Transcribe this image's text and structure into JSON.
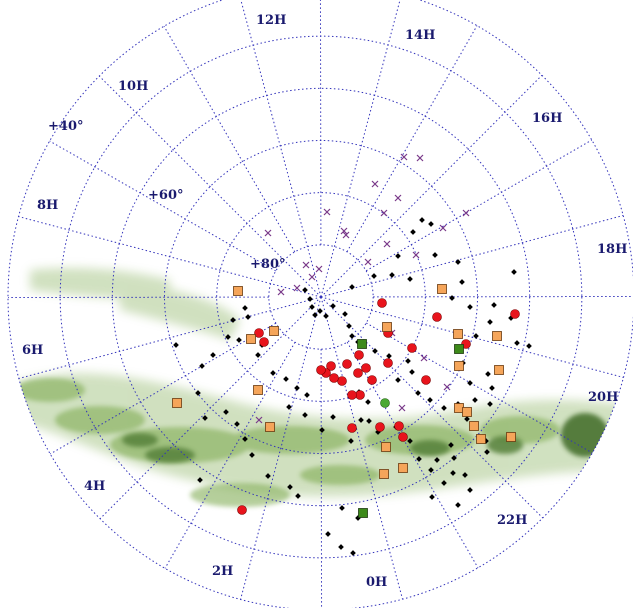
{
  "map": {
    "ra_labels": [
      "0H",
      "2H",
      "4H",
      "6H",
      "8H",
      "10H",
      "12H",
      "14H",
      "16H",
      "18H",
      "20H",
      "22H"
    ],
    "dec_labels": [
      "+40°",
      "+60°",
      "+80°"
    ],
    "colors": {
      "grid": "#3333bb",
      "label": "#1a1a6e",
      "milky_way": "#7aa84c",
      "red_circle": "#e8141c",
      "orange_square": "#f5a55a",
      "green_square": "#3d8a1a",
      "green_circle": "#4aa832",
      "black_diamond": "#000000",
      "purple_x": "#7a3a8a"
    },
    "marker_types": [
      "red-circle",
      "orange-square",
      "green-square",
      "green-circle",
      "black-diamond",
      "purple-x"
    ]
  }
}
